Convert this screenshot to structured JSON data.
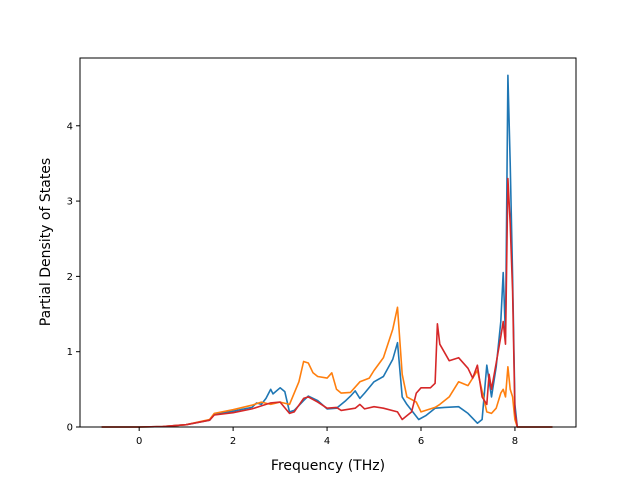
{
  "chart_data": {
    "type": "line",
    "title": "",
    "xlabel": "Frequency (THz)",
    "ylabel": "Partial Density of States",
    "xlim": [
      -1.26,
      9.3
    ],
    "ylim": [
      0,
      4.9
    ],
    "xticks": [
      0,
      2,
      4,
      6,
      8
    ],
    "yticks": [
      0,
      1,
      2,
      3,
      4
    ],
    "grid": false,
    "legend": "none",
    "series": [
      {
        "color": "#1f77b4",
        "points": [
          [
            -0.8,
            0
          ],
          [
            0,
            0
          ],
          [
            0.5,
            0.005
          ],
          [
            1,
            0.03
          ],
          [
            1.5,
            0.09
          ],
          [
            1.6,
            0.17
          ],
          [
            2,
            0.21
          ],
          [
            2.4,
            0.26
          ],
          [
            2.5,
            0.32
          ],
          [
            2.6,
            0.3
          ],
          [
            2.7,
            0.38
          ],
          [
            2.8,
            0.5
          ],
          [
            2.85,
            0.44
          ],
          [
            3.0,
            0.52
          ],
          [
            3.1,
            0.47
          ],
          [
            3.2,
            0.2
          ],
          [
            3.3,
            0.22
          ],
          [
            3.5,
            0.35
          ],
          [
            3.6,
            0.41
          ],
          [
            3.8,
            0.35
          ],
          [
            4.0,
            0.24
          ],
          [
            4.2,
            0.25
          ],
          [
            4.4,
            0.35
          ],
          [
            4.5,
            0.41
          ],
          [
            4.6,
            0.48
          ],
          [
            4.7,
            0.38
          ],
          [
            4.8,
            0.45
          ],
          [
            5.0,
            0.6
          ],
          [
            5.2,
            0.67
          ],
          [
            5.4,
            0.9
          ],
          [
            5.5,
            1.12
          ],
          [
            5.6,
            0.4
          ],
          [
            5.7,
            0.3
          ],
          [
            5.8,
            0.22
          ],
          [
            5.95,
            0.1
          ],
          [
            6.1,
            0.15
          ],
          [
            6.3,
            0.25
          ],
          [
            6.5,
            0.26
          ],
          [
            6.8,
            0.27
          ],
          [
            7.0,
            0.18
          ],
          [
            7.2,
            0.05
          ],
          [
            7.3,
            0.1
          ],
          [
            7.4,
            0.82
          ],
          [
            7.5,
            0.4
          ],
          [
            7.6,
            0.8
          ],
          [
            7.7,
            1.4
          ],
          [
            7.75,
            2.05
          ],
          [
            7.8,
            1.2
          ],
          [
            7.85,
            4.67
          ],
          [
            7.9,
            3.5
          ],
          [
            7.95,
            2.0
          ],
          [
            8.0,
            0.3
          ],
          [
            8.05,
            0
          ],
          [
            8.8,
            0
          ]
        ]
      },
      {
        "color": "#ff7f0e",
        "points": [
          [
            -0.8,
            0
          ],
          [
            0,
            0
          ],
          [
            0.5,
            0.005
          ],
          [
            1,
            0.03
          ],
          [
            1.5,
            0.1
          ],
          [
            1.6,
            0.18
          ],
          [
            2,
            0.23
          ],
          [
            2.4,
            0.29
          ],
          [
            2.6,
            0.33
          ],
          [
            2.8,
            0.3
          ],
          [
            3.0,
            0.33
          ],
          [
            3.2,
            0.3
          ],
          [
            3.4,
            0.6
          ],
          [
            3.5,
            0.87
          ],
          [
            3.6,
            0.85
          ],
          [
            3.7,
            0.72
          ],
          [
            3.8,
            0.67
          ],
          [
            4.0,
            0.65
          ],
          [
            4.1,
            0.72
          ],
          [
            4.2,
            0.5
          ],
          [
            4.3,
            0.45
          ],
          [
            4.5,
            0.46
          ],
          [
            4.7,
            0.6
          ],
          [
            4.9,
            0.65
          ],
          [
            5.0,
            0.75
          ],
          [
            5.2,
            0.92
          ],
          [
            5.4,
            1.3
          ],
          [
            5.5,
            1.59
          ],
          [
            5.6,
            0.7
          ],
          [
            5.7,
            0.4
          ],
          [
            5.9,
            0.33
          ],
          [
            6.0,
            0.2
          ],
          [
            6.3,
            0.26
          ],
          [
            6.4,
            0.3
          ],
          [
            6.6,
            0.4
          ],
          [
            6.8,
            0.6
          ],
          [
            7.0,
            0.55
          ],
          [
            7.2,
            0.75
          ],
          [
            7.4,
            0.2
          ],
          [
            7.5,
            0.18
          ],
          [
            7.6,
            0.25
          ],
          [
            7.7,
            0.45
          ],
          [
            7.75,
            0.5
          ],
          [
            7.8,
            0.4
          ],
          [
            7.85,
            0.8
          ],
          [
            7.9,
            0.5
          ],
          [
            7.95,
            0.4
          ],
          [
            8.0,
            0.1
          ],
          [
            8.05,
            0
          ],
          [
            8.8,
            0
          ]
        ]
      },
      {
        "color": "#d62728",
        "points": [
          [
            -0.8,
            0
          ],
          [
            0,
            0
          ],
          [
            0.5,
            0.005
          ],
          [
            1,
            0.03
          ],
          [
            1.5,
            0.09
          ],
          [
            1.6,
            0.16
          ],
          [
            2,
            0.19
          ],
          [
            2.4,
            0.24
          ],
          [
            2.6,
            0.28
          ],
          [
            2.8,
            0.32
          ],
          [
            3.0,
            0.33
          ],
          [
            3.2,
            0.18
          ],
          [
            3.3,
            0.2
          ],
          [
            3.5,
            0.38
          ],
          [
            3.6,
            0.4
          ],
          [
            3.8,
            0.33
          ],
          [
            4.0,
            0.25
          ],
          [
            4.2,
            0.26
          ],
          [
            4.3,
            0.22
          ],
          [
            4.6,
            0.25
          ],
          [
            4.7,
            0.3
          ],
          [
            4.8,
            0.24
          ],
          [
            5.0,
            0.27
          ],
          [
            5.2,
            0.25
          ],
          [
            5.5,
            0.2
          ],
          [
            5.6,
            0.1
          ],
          [
            5.8,
            0.2
          ],
          [
            5.9,
            0.45
          ],
          [
            6.0,
            0.52
          ],
          [
            6.2,
            0.52
          ],
          [
            6.3,
            0.58
          ],
          [
            6.35,
            1.37
          ],
          [
            6.4,
            1.1
          ],
          [
            6.6,
            0.88
          ],
          [
            6.8,
            0.92
          ],
          [
            7.0,
            0.78
          ],
          [
            7.1,
            0.65
          ],
          [
            7.2,
            0.82
          ],
          [
            7.3,
            0.4
          ],
          [
            7.4,
            0.3
          ],
          [
            7.45,
            0.7
          ],
          [
            7.5,
            0.5
          ],
          [
            7.6,
            0.85
          ],
          [
            7.7,
            1.2
          ],
          [
            7.75,
            1.4
          ],
          [
            7.8,
            1.1
          ],
          [
            7.85,
            3.3
          ],
          [
            7.9,
            2.7
          ],
          [
            7.95,
            1.8
          ],
          [
            8.0,
            0.2
          ],
          [
            8.05,
            0
          ],
          [
            8.8,
            0
          ]
        ]
      }
    ]
  }
}
